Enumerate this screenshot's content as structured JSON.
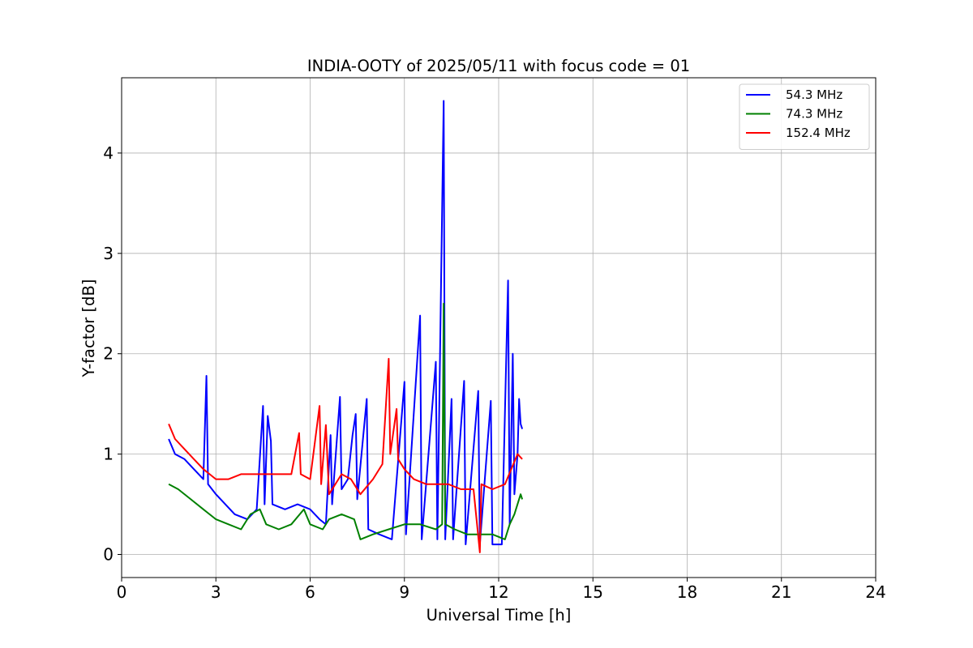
{
  "chart_data": {
    "type": "line",
    "title": "INDIA-OOTY of 2025/05/11 with focus code = 01",
    "xlabel": "Universal Time [h]",
    "ylabel": "Y-factor [dB]",
    "xlim": [
      0,
      24
    ],
    "ylim": [
      -0.23,
      4.75
    ],
    "xticks": [
      0,
      3,
      6,
      9,
      12,
      15,
      18,
      21,
      24
    ],
    "yticks": [
      0,
      1,
      2,
      3,
      4
    ],
    "grid": true,
    "legend_position": "top-right",
    "series": [
      {
        "name": "54.3 MHz",
        "color": "#0000ff",
        "points": [
          [
            1.5,
            1.15
          ],
          [
            1.7,
            1.0
          ],
          [
            2.0,
            0.95
          ],
          [
            2.3,
            0.85
          ],
          [
            2.6,
            0.75
          ],
          [
            2.7,
            1.78
          ],
          [
            2.75,
            0.7
          ],
          [
            3.0,
            0.6
          ],
          [
            3.3,
            0.5
          ],
          [
            3.6,
            0.4
          ],
          [
            4.0,
            0.35
          ],
          [
            4.3,
            0.45
          ],
          [
            4.5,
            1.48
          ],
          [
            4.55,
            0.5
          ],
          [
            4.65,
            1.38
          ],
          [
            4.75,
            1.13
          ],
          [
            4.8,
            0.5
          ],
          [
            5.2,
            0.45
          ],
          [
            5.6,
            0.5
          ],
          [
            6.0,
            0.45
          ],
          [
            6.3,
            0.35
          ],
          [
            6.5,
            0.3
          ],
          [
            6.65,
            1.19
          ],
          [
            6.7,
            0.5
          ],
          [
            6.95,
            1.57
          ],
          [
            7.0,
            0.65
          ],
          [
            7.2,
            0.75
          ],
          [
            7.35,
            1.19
          ],
          [
            7.45,
            1.4
          ],
          [
            7.5,
            0.55
          ],
          [
            7.8,
            1.55
          ],
          [
            7.85,
            0.25
          ],
          [
            8.2,
            0.2
          ],
          [
            8.6,
            0.15
          ],
          [
            9.0,
            1.72
          ],
          [
            9.05,
            0.2
          ],
          [
            9.5,
            2.38
          ],
          [
            9.55,
            0.15
          ],
          [
            10.0,
            1.92
          ],
          [
            10.05,
            0.15
          ],
          [
            10.25,
            4.52
          ],
          [
            10.3,
            0.15
          ],
          [
            10.5,
            1.55
          ],
          [
            10.55,
            0.15
          ],
          [
            10.9,
            1.73
          ],
          [
            10.95,
            0.1
          ],
          [
            11.35,
            1.63
          ],
          [
            11.4,
            0.1
          ],
          [
            11.75,
            1.53
          ],
          [
            11.8,
            0.1
          ],
          [
            12.1,
            0.1
          ],
          [
            12.3,
            2.73
          ],
          [
            12.35,
            0.3
          ],
          [
            12.45,
            2.0
          ],
          [
            12.5,
            0.6
          ],
          [
            12.6,
            1.0
          ],
          [
            12.65,
            1.55
          ],
          [
            12.7,
            1.3
          ],
          [
            12.75,
            1.25
          ]
        ]
      },
      {
        "name": "74.3 MHz",
        "color": "#008000",
        "points": [
          [
            1.5,
            0.7
          ],
          [
            1.8,
            0.65
          ],
          [
            2.2,
            0.55
          ],
          [
            2.6,
            0.45
          ],
          [
            3.0,
            0.35
          ],
          [
            3.4,
            0.3
          ],
          [
            3.8,
            0.25
          ],
          [
            4.1,
            0.4
          ],
          [
            4.4,
            0.45
          ],
          [
            4.6,
            0.3
          ],
          [
            5.0,
            0.25
          ],
          [
            5.4,
            0.3
          ],
          [
            5.8,
            0.45
          ],
          [
            6.0,
            0.3
          ],
          [
            6.4,
            0.25
          ],
          [
            6.6,
            0.35
          ],
          [
            7.0,
            0.4
          ],
          [
            7.4,
            0.35
          ],
          [
            7.6,
            0.15
          ],
          [
            8.0,
            0.2
          ],
          [
            8.5,
            0.25
          ],
          [
            9.0,
            0.3
          ],
          [
            9.5,
            0.3
          ],
          [
            10.0,
            0.25
          ],
          [
            10.2,
            0.3
          ],
          [
            10.25,
            2.5
          ],
          [
            10.3,
            0.3
          ],
          [
            10.6,
            0.25
          ],
          [
            11.0,
            0.2
          ],
          [
            11.4,
            0.2
          ],
          [
            11.8,
            0.2
          ],
          [
            12.2,
            0.15
          ],
          [
            12.35,
            0.3
          ],
          [
            12.5,
            0.4
          ],
          [
            12.7,
            0.6
          ],
          [
            12.75,
            0.55
          ]
        ]
      },
      {
        "name": "152.4 MHz",
        "color": "#ff0000",
        "points": [
          [
            1.5,
            1.3
          ],
          [
            1.7,
            1.15
          ],
          [
            2.0,
            1.05
          ],
          [
            2.3,
            0.95
          ],
          [
            2.6,
            0.85
          ],
          [
            3.0,
            0.75
          ],
          [
            3.4,
            0.75
          ],
          [
            3.8,
            0.8
          ],
          [
            4.2,
            0.8
          ],
          [
            4.6,
            0.8
          ],
          [
            5.0,
            0.8
          ],
          [
            5.4,
            0.8
          ],
          [
            5.65,
            1.21
          ],
          [
            5.7,
            0.8
          ],
          [
            6.0,
            0.75
          ],
          [
            6.3,
            1.48
          ],
          [
            6.35,
            0.7
          ],
          [
            6.5,
            1.29
          ],
          [
            6.6,
            0.6
          ],
          [
            7.0,
            0.8
          ],
          [
            7.3,
            0.75
          ],
          [
            7.6,
            0.6
          ],
          [
            8.0,
            0.75
          ],
          [
            8.3,
            0.9
          ],
          [
            8.5,
            1.95
          ],
          [
            8.55,
            1.0
          ],
          [
            8.75,
            1.45
          ],
          [
            8.8,
            0.95
          ],
          [
            9.0,
            0.85
          ],
          [
            9.3,
            0.75
          ],
          [
            9.7,
            0.7
          ],
          [
            10.0,
            0.7
          ],
          [
            10.4,
            0.7
          ],
          [
            10.8,
            0.65
          ],
          [
            11.2,
            0.65
          ],
          [
            11.4,
            0.02
          ],
          [
            11.45,
            0.7
          ],
          [
            11.8,
            0.65
          ],
          [
            12.2,
            0.7
          ],
          [
            12.4,
            0.85
          ],
          [
            12.6,
            1.0
          ],
          [
            12.75,
            0.95
          ]
        ]
      }
    ]
  }
}
